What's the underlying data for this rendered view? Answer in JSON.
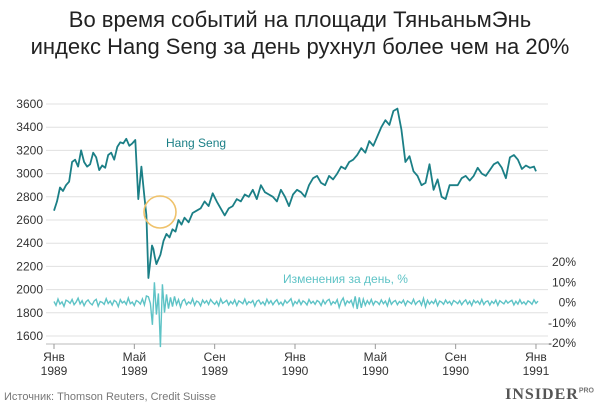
{
  "title": {
    "line1": "Во время событий на площади ТяньаньмЭнь",
    "line2": "индекс Hang Seng за день рухнул более чем на 20%"
  },
  "footer": {
    "source": "Источник: Thomson Reuters, Credit Suisse",
    "brand": "INSIDER",
    "brand_sup": "PRO"
  },
  "colors": {
    "index_line": "#1b7f86",
    "change_line": "#5ec3c6",
    "highlight_circle": "#efc26b",
    "grid": "#e0e0e0"
  },
  "chart_data": [
    {
      "type": "line",
      "name": "Hang Seng",
      "label": "Hang Seng",
      "y_ticks": [
        "3600",
        "3400",
        "3200",
        "3000",
        "2800",
        "2600",
        "2400",
        "2200",
        "2000",
        "1800",
        "1600"
      ],
      "ylim": [
        1600,
        3600
      ],
      "x_ticks": [
        {
          "line1": "Янв",
          "line2": "1989",
          "t": 0
        },
        {
          "line1": "Май",
          "line2": "1989",
          "t": 4
        },
        {
          "line1": "Сен",
          "line2": "1989",
          "t": 8
        },
        {
          "line1": "Янв",
          "line2": "1990",
          "t": 12
        },
        {
          "line1": "Май",
          "line2": "1990",
          "t": 16
        },
        {
          "line1": "Сен",
          "line2": "1990",
          "t": 20
        },
        {
          "line1": "Янв",
          "line2": "1991",
          "t": 24
        }
      ],
      "xlim": [
        0,
        24.2
      ],
      "x": [
        0.0,
        0.15,
        0.3,
        0.45,
        0.6,
        0.75,
        0.9,
        1.05,
        1.2,
        1.35,
        1.5,
        1.65,
        1.8,
        1.95,
        2.1,
        2.25,
        2.4,
        2.55,
        2.7,
        2.85,
        3.0,
        3.15,
        3.3,
        3.45,
        3.6,
        3.75,
        3.9,
        4.05,
        4.2,
        4.35,
        4.5,
        4.6,
        4.7,
        4.8,
        4.88,
        4.95,
        5.02,
        5.1,
        5.2,
        5.3,
        5.45,
        5.6,
        5.75,
        5.9,
        6.05,
        6.2,
        6.35,
        6.5,
        6.7,
        6.9,
        7.1,
        7.3,
        7.5,
        7.7,
        7.9,
        8.1,
        8.3,
        8.5,
        8.7,
        8.9,
        9.1,
        9.3,
        9.5,
        9.7,
        9.9,
        10.1,
        10.3,
        10.5,
        10.7,
        10.9,
        11.1,
        11.3,
        11.5,
        11.7,
        11.9,
        12.1,
        12.3,
        12.5,
        12.7,
        12.9,
        13.1,
        13.3,
        13.5,
        13.7,
        13.9,
        14.1,
        14.3,
        14.5,
        14.7,
        14.9,
        15.1,
        15.3,
        15.5,
        15.7,
        15.9,
        16.1,
        16.3,
        16.5,
        16.7,
        16.9,
        17.1,
        17.3,
        17.5,
        17.7,
        17.9,
        18.1,
        18.3,
        18.5,
        18.7,
        18.9,
        19.1,
        19.3,
        19.5,
        19.7,
        19.9,
        20.1,
        20.3,
        20.5,
        20.7,
        20.9,
        21.1,
        21.3,
        21.5,
        21.7,
        21.9,
        22.1,
        22.3,
        22.5,
        22.7,
        22.9,
        23.1,
        23.3,
        23.5,
        23.7,
        23.9,
        24.0
      ],
      "values": [
        2680,
        2760,
        2880,
        2850,
        2900,
        2930,
        3100,
        3120,
        3060,
        3200,
        3100,
        3060,
        3080,
        3180,
        3140,
        3030,
        3070,
        3050,
        3160,
        3180,
        3120,
        3230,
        3270,
        3260,
        3300,
        3240,
        3260,
        3290,
        2780,
        3060,
        2800,
        2640,
        2100,
        2250,
        2380,
        2350,
        2280,
        2220,
        2260,
        2300,
        2420,
        2480,
        2450,
        2520,
        2500,
        2600,
        2560,
        2620,
        2580,
        2660,
        2680,
        2700,
        2760,
        2720,
        2830,
        2760,
        2700,
        2640,
        2700,
        2720,
        2780,
        2760,
        2820,
        2800,
        2860,
        2780,
        2900,
        2840,
        2820,
        2800,
        2760,
        2860,
        2800,
        2720,
        2820,
        2860,
        2840,
        2800,
        2900,
        2960,
        2980,
        2920,
        2900,
        2980,
        2950,
        3000,
        3060,
        3040,
        3100,
        3120,
        3160,
        3220,
        3180,
        3280,
        3240,
        3320,
        3400,
        3460,
        3420,
        3540,
        3560,
        3380,
        3100,
        3150,
        3020,
        2980,
        2900,
        2920,
        3080,
        2860,
        2950,
        2800,
        2780,
        2900,
        2900,
        2900,
        2960,
        2980,
        2940,
        2980,
        3050,
        3000,
        2980,
        3030,
        3080,
        3100,
        3050,
        2960,
        3140,
        3160,
        3120,
        3040,
        3070,
        3050,
        3060,
        3020
      ]
    },
    {
      "type": "line",
      "name": "Изменения за день, %",
      "label": "Изменения за день, %",
      "y_ticks": [
        "20%",
        "10%",
        "0%",
        "-10%",
        "-20%"
      ],
      "ylim": [
        -20,
        20
      ],
      "x_start": 0,
      "x_step": 0.1,
      "values": [
        0.5,
        -1.4,
        1.7,
        -0.8,
        0.3,
        -1.9,
        1.2,
        0.6,
        -0.4,
        1.5,
        -1.1,
        0.2,
        2.1,
        -0.7,
        0.9,
        -1.6,
        0.4,
        1.3,
        -0.3,
        -1.2,
        0.8,
        1.6,
        -1.8,
        0.5,
        0.1,
        -0.9,
        1.9,
        -0.5,
        0.7,
        -1.3,
        1.1,
        0.3,
        -2.0,
        1.4,
        -0.2,
        0.6,
        -1.0,
        2.2,
        -0.6,
        0.2,
        -1.5,
        1.0,
        0.4,
        -0.8,
        1.8,
        -1.2,
        3.2,
        2.8,
        -0.5,
        -11.0,
        10.0,
        -6.0,
        4.5,
        -22.0,
        9.0,
        -5.0,
        4.0,
        -3.0,
        2.5,
        -2.0,
        3.0,
        -1.0,
        1.4,
        -2.2,
        0.8,
        1.6,
        -1.1,
        0.3,
        -0.6,
        1.9,
        -1.4,
        0.7,
        0.2,
        -1.7,
        1.2,
        -0.3,
        0.9,
        -1.0,
        1.5,
        0.1,
        -0.9,
        0.6,
        -1.6,
        1.8,
        -0.4,
        0.3,
        1.1,
        -1.2,
        0.5,
        -0.7,
        1.3,
        -1.5,
        0.8,
        0.2,
        -0.6,
        1.7,
        -1.0,
        0.4,
        -0.2,
        1.0,
        -1.8,
        0.6,
        1.2,
        -0.8,
        0.3,
        -1.3,
        1.6,
        -0.5,
        0.9,
        -1.1,
        0.4,
        1.4,
        -0.9,
        0.2,
        -1.4,
        1.1,
        -0.3,
        0.7,
        1.9,
        -1.6,
        0.5,
        -0.6,
        1.3,
        -1.0,
        0.8,
        0.1,
        -1.2,
        1.5,
        -0.4,
        0.6,
        -0.9,
        1.0,
        0.3,
        -1.5,
        1.2,
        -0.7,
        0.9,
        1.6,
        -1.1,
        0.4,
        -0.5,
        1.4,
        -2.4,
        0.6,
        2.2,
        -1.3,
        0.8,
        -0.2,
        1.1,
        -1.9,
        3.0,
        -3.2,
        2.5,
        -2.6,
        1.7,
        -1.4,
        0.9,
        -0.8,
        1.5,
        -1.2,
        0.6,
        0.2,
        -1.0,
        1.3,
        -0.6,
        0.7,
        -1.7,
        1.8,
        -0.9,
        0.4,
        1.0,
        -1.1,
        0.5,
        -0.3,
        1.2,
        -1.4,
        0.8,
        0.1,
        -0.7,
        1.6,
        -1.0,
        0.3,
        0.9,
        -1.3,
        2.0,
        -2.1,
        1.1,
        -0.8,
        0.6,
        -0.5,
        1.4,
        -1.6,
        0.7,
        0.2,
        -0.9,
        1.2,
        -0.4,
        0.5,
        -1.2,
        1.0,
        0.3,
        -0.6,
        0.9,
        -1.1,
        0.4,
        1.3,
        -0.8,
        0.6,
        -1.5,
        1.1,
        -0.2,
        0.7,
        -0.9,
        1.5,
        -1.0,
        0.4,
        0.8,
        -1.3,
        0.6,
        -0.5,
        1.2,
        -1.4,
        0.9,
        0.1,
        -0.7,
        1.0,
        -0.3,
        0.5,
        1.1,
        -1.2,
        0.6,
        -0.8,
        1.4,
        -0.6,
        0.3,
        -1.0,
        0.8,
        0.2,
        -0.9,
        1.3,
        -0.4,
        0.7,
        -1.1
      ]
    }
  ]
}
